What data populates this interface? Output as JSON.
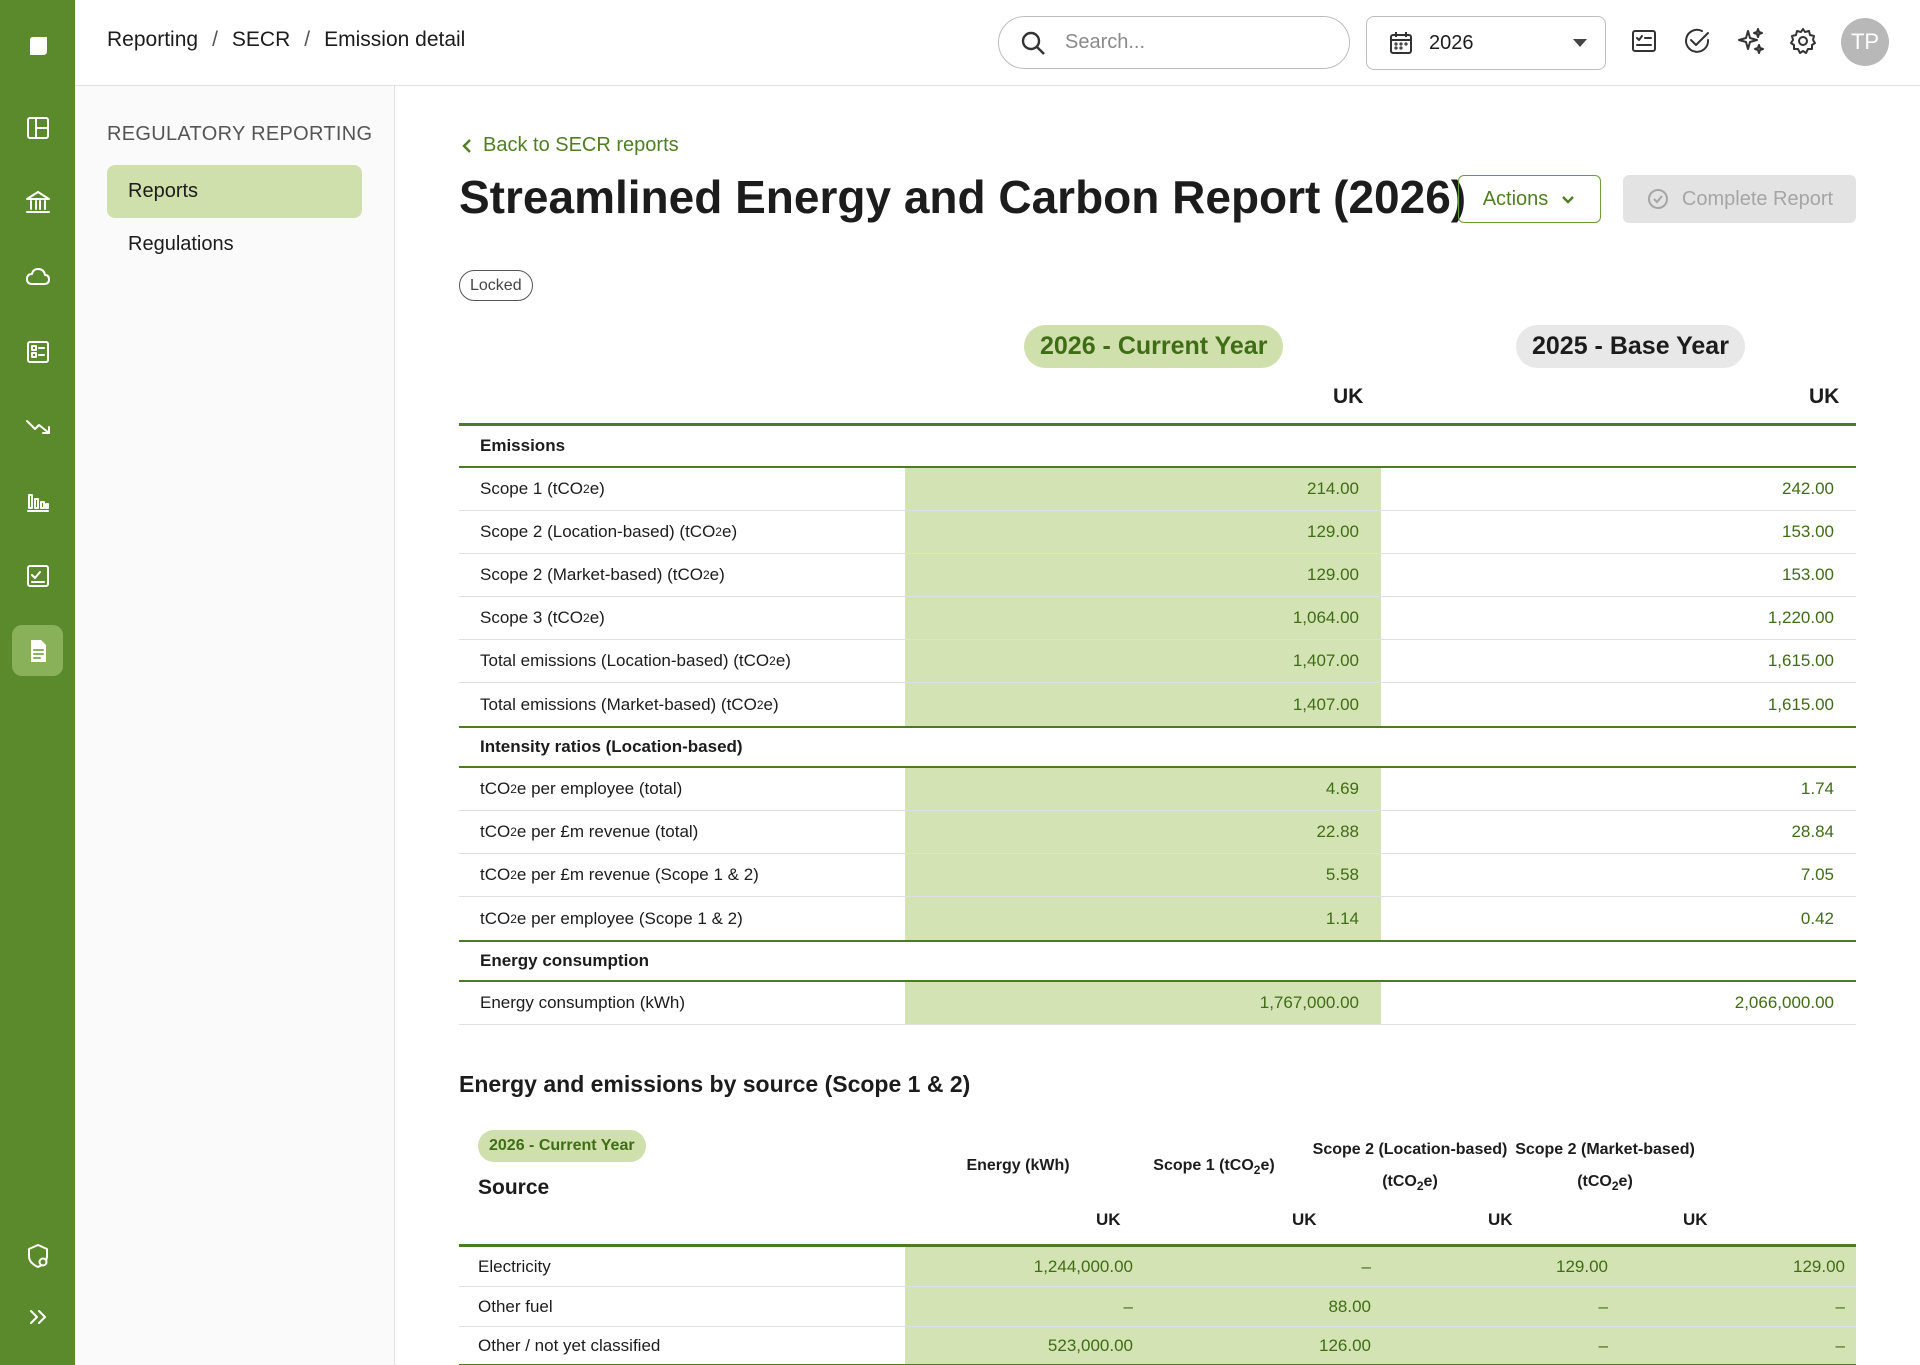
{
  "breadcrumb": [
    "Reporting",
    "SECR",
    "Emission detail"
  ],
  "search": {
    "placeholder": "Search..."
  },
  "year_selector": {
    "value": "2026"
  },
  "avatar_initials": "TP",
  "colors": {
    "rail": "#5b8a2d",
    "accent": "#4f7f22",
    "current_year_bg": "#cfe0ad"
  },
  "rail_icons": [
    "logo-icon",
    "layout-icon",
    "bank-icon",
    "cloud-icon",
    "checklist-icon",
    "trend-down-icon",
    "bar-chart-icon",
    "task-check-icon",
    "document-icon",
    "shield-settings-icon",
    "expand-icon"
  ],
  "subnav": {
    "section_title": "REGULATORY REPORTING",
    "items": [
      {
        "label": "Reports",
        "active": true
      },
      {
        "label": "Regulations",
        "active": false
      }
    ]
  },
  "page": {
    "back_link": "Back to SECR reports",
    "title": "Streamlined Energy and Carbon Report (2026)",
    "actions_label": "Actions",
    "complete_label": "Complete Report",
    "status_badge": "Locked"
  },
  "summary": {
    "current_year_label": "2026 - Current Year",
    "base_year_label": "2025 - Base Year",
    "current_region": "UK",
    "base_region": "UK",
    "groups": [
      {
        "heading": "Emissions",
        "rows": [
          {
            "label_html": "Scope 1 (tCO<sub>2</sub>e)",
            "current": "214.00",
            "base": "242.00"
          },
          {
            "label_html": "Scope 2 (Location-based) (tCO<sub>2</sub>e)",
            "current": "129.00",
            "base": "153.00"
          },
          {
            "label_html": "Scope 2 (Market-based) (tCO<sub>2</sub>e)",
            "current": "129.00",
            "base": "153.00"
          },
          {
            "label_html": "Scope 3 (tCO<sub>2</sub>e)",
            "current": "1,064.00",
            "base": "1,220.00"
          },
          {
            "label_html": "Total emissions (Location-based) (tCO<sub>2</sub>e)",
            "current": "1,407.00",
            "base": "1,615.00"
          },
          {
            "label_html": "Total emissions (Market-based) (tCO<sub>2</sub>e)",
            "current": "1,407.00",
            "base": "1,615.00"
          }
        ]
      },
      {
        "heading": "Intensity ratios (Location-based)",
        "rows": [
          {
            "label_html": "tCO<sub>2</sub>e per employee (total)",
            "current": "4.69",
            "base": "1.74"
          },
          {
            "label_html": "tCO<sub>2</sub>e per £m revenue (total)",
            "current": "22.88",
            "base": "28.84"
          },
          {
            "label_html": "tCO<sub>2</sub>e per £m revenue (Scope 1 &amp; 2)",
            "current": "5.58",
            "base": "7.05"
          },
          {
            "label_html": "tCO<sub>2</sub>e per employee (Scope 1 &amp; 2)",
            "current": "1.14",
            "base": "0.42"
          }
        ]
      },
      {
        "heading": "Energy consumption",
        "rows": [
          {
            "label_html": "Energy consumption (kWh)",
            "current": "1,767,000.00",
            "base": "2,066,000.00"
          }
        ]
      }
    ]
  },
  "by_source": {
    "title": "Energy and emissions by source (Scope 1 & 2)",
    "year_label": "2026 - Current Year",
    "source_header": "Source",
    "column_headers_html": [
      "Energy (kWh)",
      "Scope 1 (tCO<sub>2</sub>e)",
      "Scope 2 (Location-based)<br>(tCO<sub>2</sub>e)",
      "Scope 2 (Market-based)<br>(tCO<sub>2</sub>e)"
    ],
    "regions": [
      "UK",
      "UK",
      "UK",
      "UK"
    ],
    "rows": [
      {
        "source": "Electricity",
        "values": [
          "1,244,000.00",
          "–",
          "129.00",
          "129.00"
        ]
      },
      {
        "source": "Other fuel",
        "values": [
          "–",
          "88.00",
          "–",
          "–"
        ]
      },
      {
        "source": "Other / not yet classified",
        "values": [
          "523,000.00",
          "126.00",
          "–",
          "–"
        ]
      }
    ]
  }
}
